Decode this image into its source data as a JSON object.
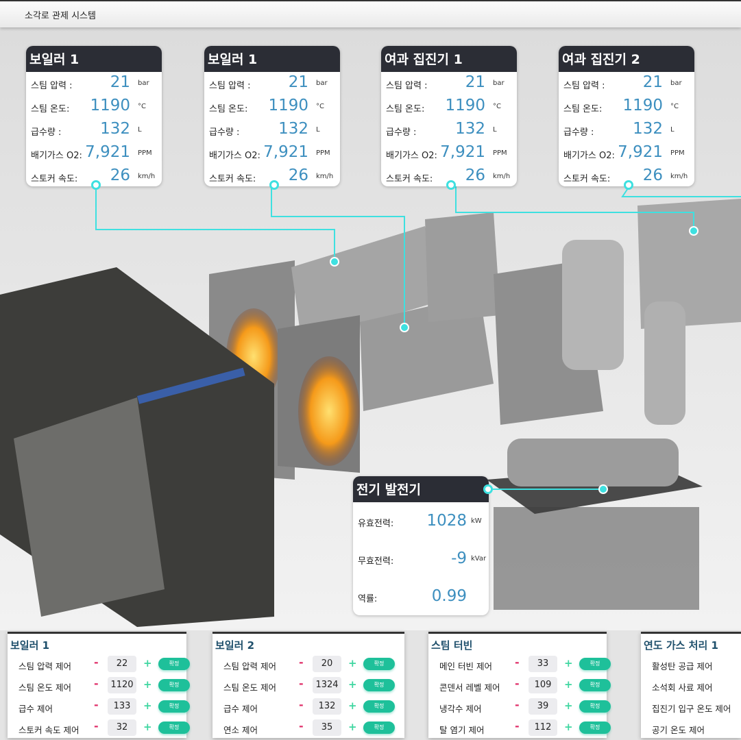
{
  "title": "소각로 관제 시스템",
  "colors": {
    "accent": "#3ee0e0",
    "value": "#3d8fbf",
    "header": "#2b2d35",
    "confirm": "#1ec09a",
    "minus": "#e0306a",
    "plus": "#3ed6a0"
  },
  "cards": [
    {
      "title": "보일러 1",
      "rows": [
        {
          "label": "스팀 압력 :",
          "value": "21",
          "unit": "bar"
        },
        {
          "label": "스팀 온도:",
          "value": "1190",
          "unit": "°C"
        },
        {
          "label": "급수량 :",
          "value": "132",
          "unit": "L"
        },
        {
          "label": "배기가스 O2:",
          "value": "7,921",
          "unit": "PPM"
        },
        {
          "label": "스토커 속도:",
          "value": "26",
          "unit": "km/h"
        }
      ]
    },
    {
      "title": "보일러 1",
      "rows": [
        {
          "label": "스팀 압력 :",
          "value": "21",
          "unit": "bar"
        },
        {
          "label": "스팀 온도:",
          "value": "1190",
          "unit": "°C"
        },
        {
          "label": "급수량 :",
          "value": "132",
          "unit": "L"
        },
        {
          "label": "배기가스 O2:",
          "value": "7,921",
          "unit": "PPM"
        },
        {
          "label": "스토커 속도:",
          "value": "26",
          "unit": "km/h"
        }
      ]
    },
    {
      "title": "여과 집진기 1",
      "rows": [
        {
          "label": "스팀 압력 :",
          "value": "21",
          "unit": "bar"
        },
        {
          "label": "스팀 온도:",
          "value": "1190",
          "unit": "°C"
        },
        {
          "label": "급수량 :",
          "value": "132",
          "unit": "L"
        },
        {
          "label": "배기가스 O2:",
          "value": "7,921",
          "unit": "PPM"
        },
        {
          "label": "스토커 속도:",
          "value": "26",
          "unit": "km/h"
        }
      ]
    },
    {
      "title": "여과 집진기 2",
      "rows": [
        {
          "label": "스팀 압력 :",
          "value": "21",
          "unit": "bar"
        },
        {
          "label": "스팀 온도:",
          "value": "1190",
          "unit": "°C"
        },
        {
          "label": "급수량 :",
          "value": "132",
          "unit": "L"
        },
        {
          "label": "배기가스 O2:",
          "value": "7,921",
          "unit": "PPM"
        },
        {
          "label": "스토커 속도:",
          "value": "26",
          "unit": "km/h"
        }
      ]
    }
  ],
  "generator": {
    "title": "전기 발전기",
    "rows": [
      {
        "label": "유효전력:",
        "value": "1028",
        "unit": "kW"
      },
      {
        "label": "무효전력:",
        "value": "-9",
        "unit": "kVar"
      },
      {
        "label": "역률:",
        "value": "0.99",
        "unit": ""
      }
    ]
  },
  "panels": [
    {
      "title": "보일러 1",
      "controls": [
        {
          "label": "스팀 압력 제어",
          "value": "22"
        },
        {
          "label": "스팀 온도 제어",
          "value": "1120"
        },
        {
          "label": "급수 제어",
          "value": "133"
        },
        {
          "label": "스토커 속도 제어",
          "value": "32"
        }
      ]
    },
    {
      "title": "보일러 2",
      "controls": [
        {
          "label": "스팀 압력 제어",
          "value": "20"
        },
        {
          "label": "스팀 온도 제어",
          "value": "1324"
        },
        {
          "label": "급수 제어",
          "value": "132"
        },
        {
          "label": "연소 제어",
          "value": "35"
        }
      ]
    },
    {
      "title": "스팀 터빈",
      "controls": [
        {
          "label": "메인 터빈 제어",
          "value": "33"
        },
        {
          "label": "콘덴서 레벨 제어",
          "value": "109"
        },
        {
          "label": "냉각수 제어",
          "value": "39"
        },
        {
          "label": "탈 염기 제어",
          "value": "112"
        }
      ]
    },
    {
      "title": "연도 가스 처리 1",
      "controls": [
        {
          "label": "활성탄 공급 제어"
        },
        {
          "label": "소석회 사료 제어"
        },
        {
          "label": "집진기 입구 온도 제어"
        },
        {
          "label": "공기 온도 제어"
        }
      ]
    }
  ],
  "buttons": {
    "minus": "-",
    "plus": "+",
    "confirm": "확정"
  }
}
